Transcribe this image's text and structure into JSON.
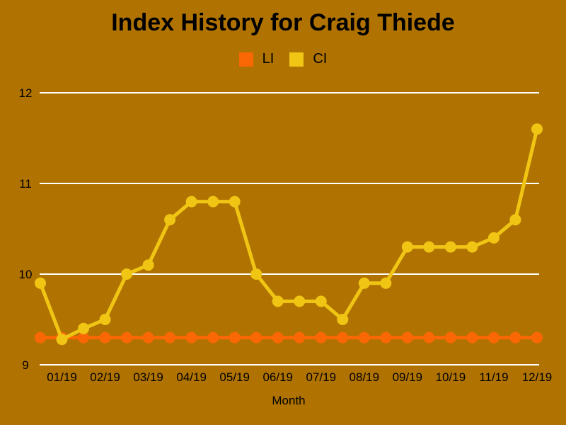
{
  "chart_data": {
    "type": "line",
    "title": "Index History for Craig Thiede",
    "xlabel": "Month",
    "ylabel": "",
    "x_tick_labels": [
      "01/19",
      "02/19",
      "03/19",
      "04/19",
      "05/19",
      "06/19",
      "07/19",
      "08/19",
      "09/19",
      "10/19",
      "11/19",
      "12/19"
    ],
    "points_per_label": 2,
    "ylim": [
      9,
      12
    ],
    "yticks": [
      9,
      10,
      11,
      12
    ],
    "grid": true,
    "legend_position": "top-center",
    "series": [
      {
        "name": "LI",
        "color": "#FA6705",
        "values": [
          9.3,
          9.3,
          9.3,
          9.3,
          9.3,
          9.3,
          9.3,
          9.3,
          9.3,
          9.3,
          9.3,
          9.3,
          9.3,
          9.3,
          9.3,
          9.3,
          9.3,
          9.3,
          9.3,
          9.3,
          9.3,
          9.3,
          9.3,
          9.3
        ]
      },
      {
        "name": "CI",
        "color": "#F0C514",
        "values": [
          9.9,
          9.28,
          9.4,
          9.5,
          10.0,
          10.1,
          10.6,
          10.8,
          10.8,
          10.8,
          10.0,
          9.7,
          9.7,
          9.7,
          9.5,
          9.9,
          9.9,
          10.3,
          10.3,
          10.3,
          10.3,
          10.4,
          10.6,
          11.6
        ]
      }
    ]
  },
  "colors": {
    "background": "#B07301",
    "grid": "#FFFFFF",
    "text": "#000000"
  }
}
